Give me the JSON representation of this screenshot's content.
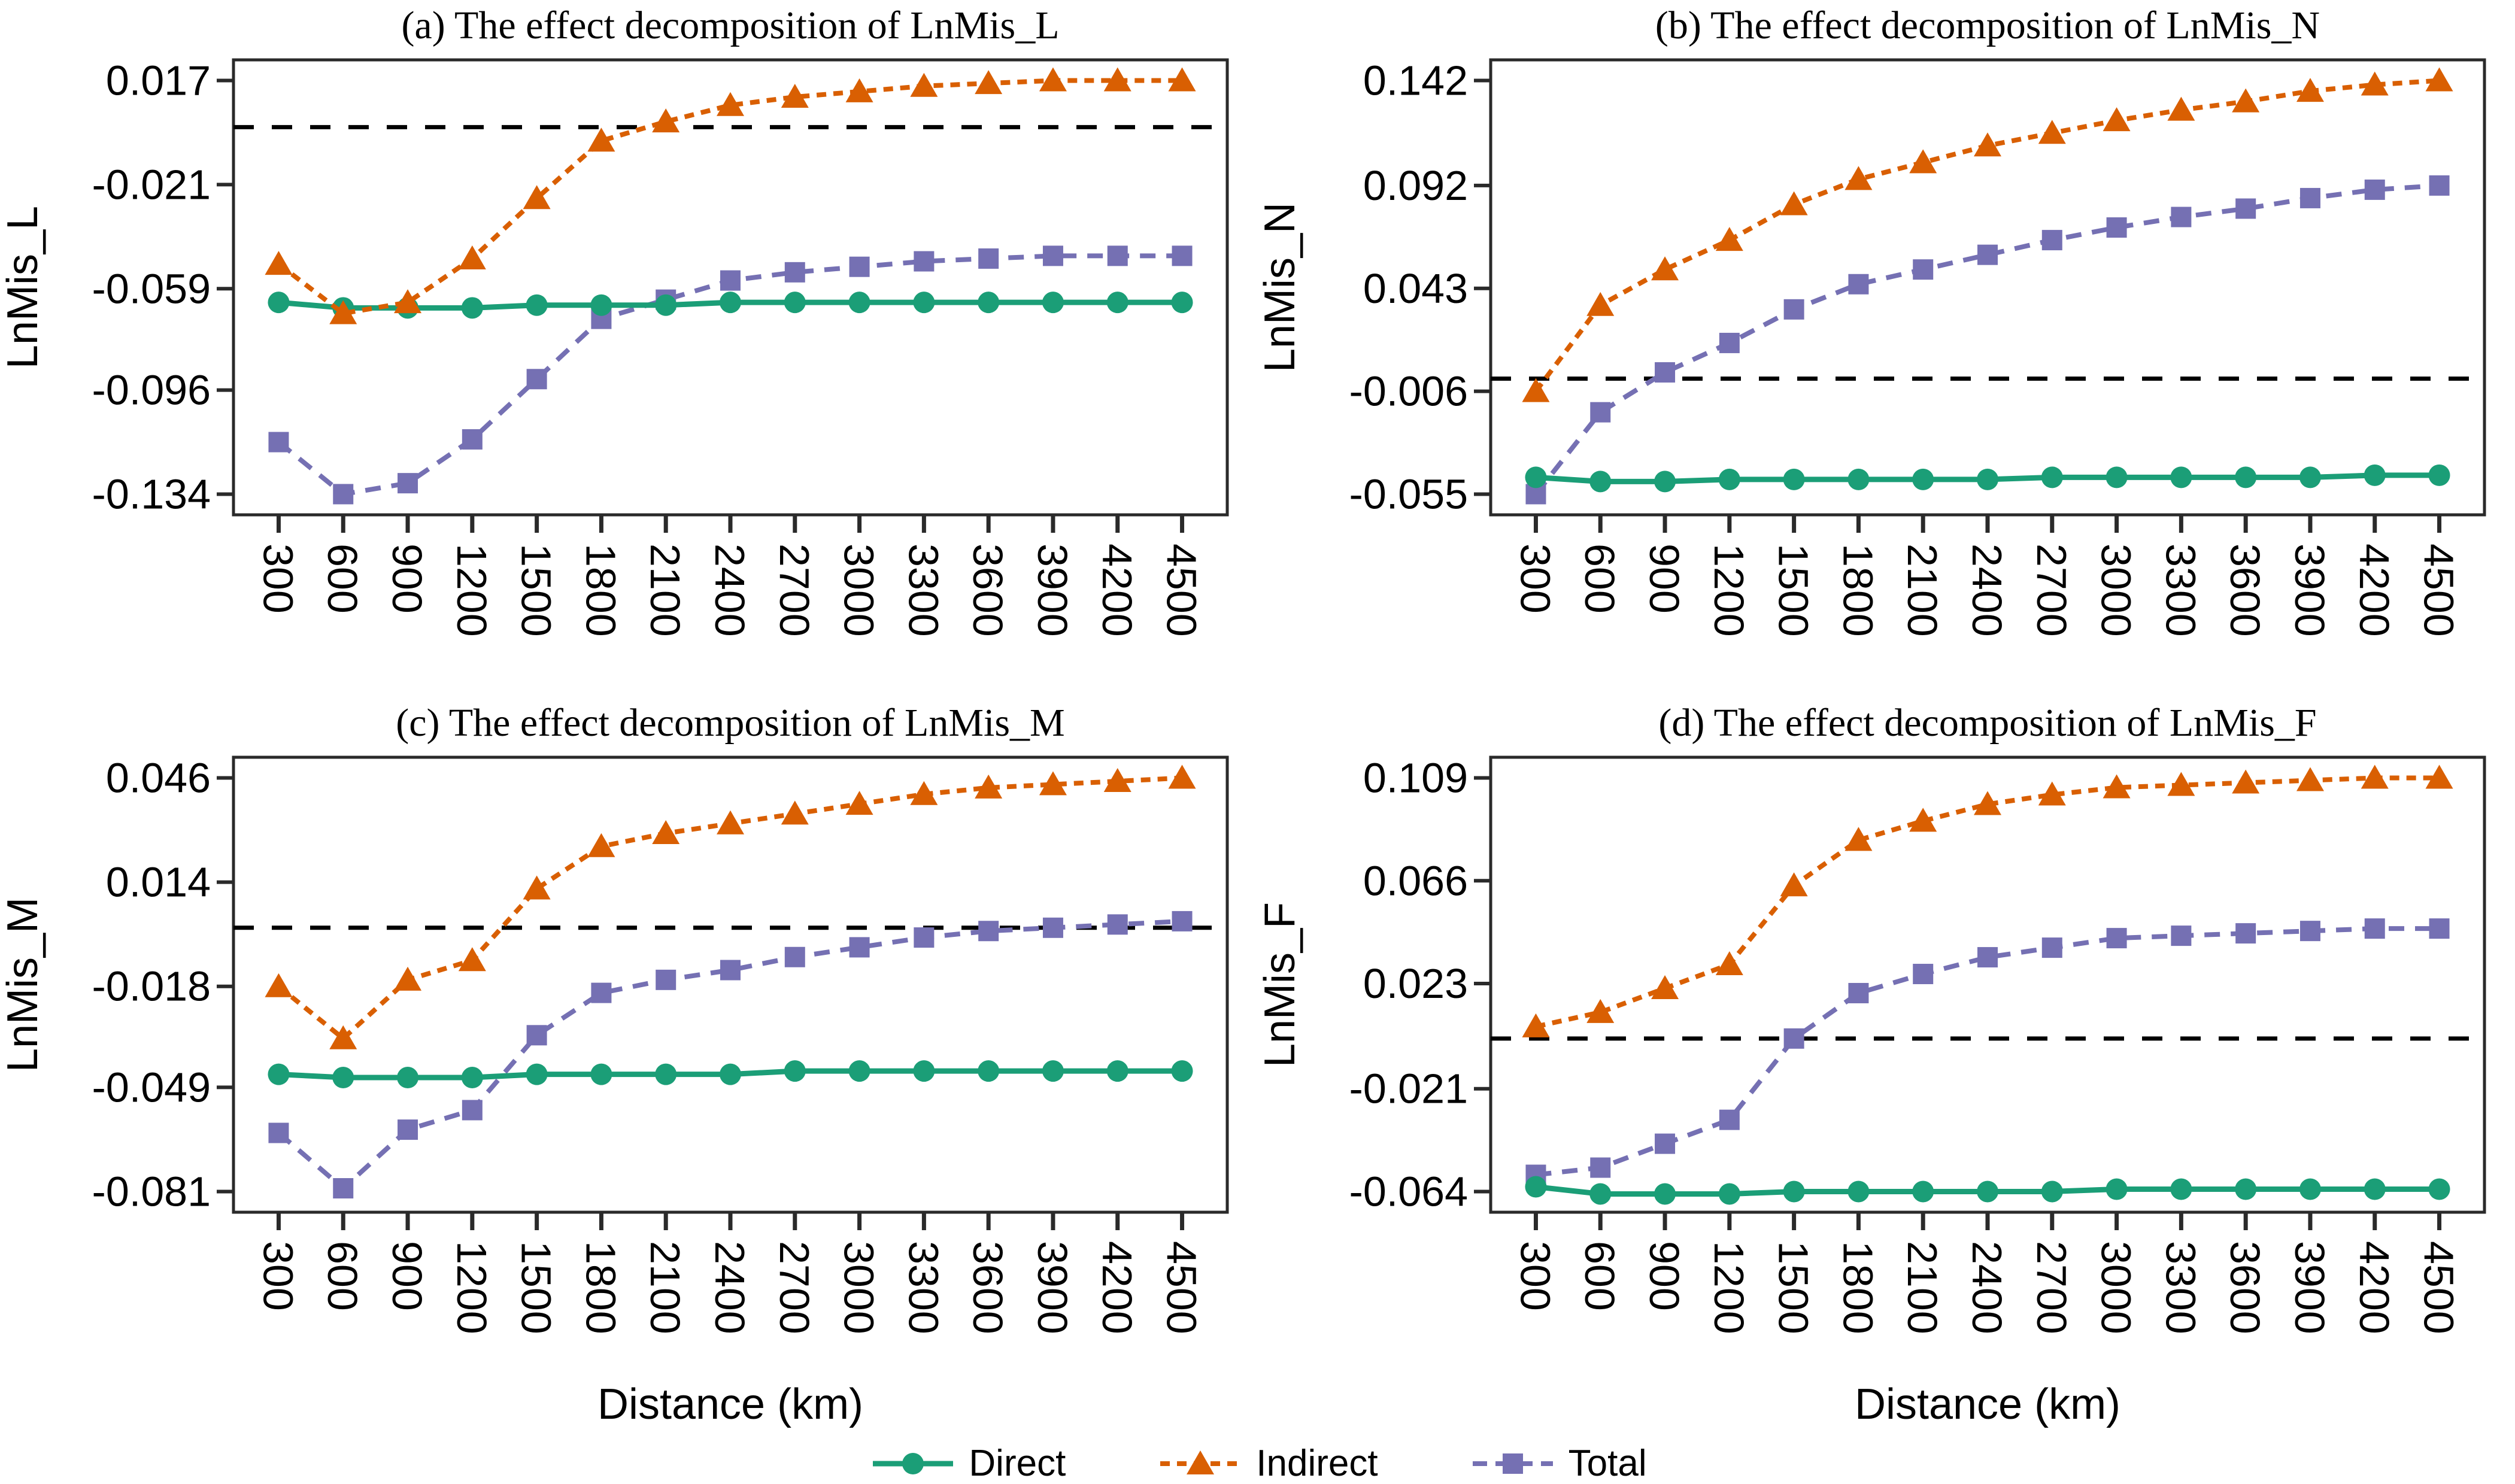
{
  "figure": {
    "background": "#ffffff",
    "axis_color": "#2a2a2a",
    "zero_line_color": "#000000"
  },
  "x_axis": {
    "label": "Distance (km)",
    "ticks": [
      300,
      600,
      900,
      1200,
      1500,
      1800,
      2100,
      2400,
      2700,
      3000,
      3300,
      3600,
      3900,
      4200,
      4500
    ]
  },
  "legend": {
    "items": [
      {
        "label": "Direct",
        "color": "#1b9e77",
        "marker": "circle",
        "line": "solid"
      },
      {
        "label": "Indirect",
        "color": "#d95f02",
        "marker": "triangle",
        "line": "dashed"
      },
      {
        "label": "Total",
        "color": "#7570b3",
        "marker": "square",
        "line": "longdash"
      }
    ]
  },
  "chart_data": [
    {
      "type": "line",
      "panel": "a",
      "title": "(a) The effect decomposition of LnMis_L",
      "ylabel": "LnMis_L",
      "xlabel": "",
      "yticks": [
        "0.017",
        "-0.021",
        "-0.059",
        "-0.096",
        "-0.134"
      ],
      "zero_line": 0,
      "x": [
        300,
        600,
        900,
        1200,
        1500,
        1800,
        2100,
        2400,
        2700,
        3000,
        3300,
        3600,
        3900,
        4200,
        4500
      ],
      "series": [
        {
          "name": "Direct",
          "color": "#1b9e77",
          "marker": "circle",
          "line": "solid",
          "values": [
            -0.064,
            -0.066,
            -0.066,
            -0.066,
            -0.065,
            -0.065,
            -0.065,
            -0.064,
            -0.064,
            -0.064,
            -0.064,
            -0.064,
            -0.064,
            -0.064,
            -0.064
          ]
        },
        {
          "name": "Indirect",
          "color": "#d95f02",
          "marker": "triangle",
          "line": "dashed",
          "values": [
            -0.05,
            -0.068,
            -0.064,
            -0.048,
            -0.026,
            -0.005,
            0.002,
            0.008,
            0.011,
            0.013,
            0.015,
            0.016,
            0.017,
            0.017,
            0.017
          ]
        },
        {
          "name": "Total",
          "color": "#7570b3",
          "marker": "square",
          "line": "longdash",
          "values": [
            -0.115,
            -0.134,
            -0.13,
            -0.114,
            -0.092,
            -0.07,
            -0.063,
            -0.056,
            -0.053,
            -0.051,
            -0.049,
            -0.048,
            -0.047,
            -0.047,
            -0.047
          ]
        }
      ]
    },
    {
      "type": "line",
      "panel": "b",
      "title": "(b) The effect decomposition of LnMis_N",
      "ylabel": "LnMis_N",
      "xlabel": "",
      "yticks": [
        "0.142",
        "0.092",
        "0.043",
        "-0.006",
        "-0.055"
      ],
      "zero_line": 0,
      "x": [
        300,
        600,
        900,
        1200,
        1500,
        1800,
        2100,
        2400,
        2700,
        3000,
        3300,
        3600,
        3900,
        4200,
        4500
      ],
      "series": [
        {
          "name": "Direct",
          "color": "#1b9e77",
          "marker": "circle",
          "line": "solid",
          "values": [
            -0.047,
            -0.049,
            -0.049,
            -0.048,
            -0.048,
            -0.048,
            -0.048,
            -0.048,
            -0.047,
            -0.047,
            -0.047,
            -0.047,
            -0.047,
            -0.046,
            -0.046
          ]
        },
        {
          "name": "Indirect",
          "color": "#d95f02",
          "marker": "triangle",
          "line": "dashed",
          "values": [
            -0.006,
            0.035,
            0.052,
            0.066,
            0.083,
            0.095,
            0.103,
            0.111,
            0.117,
            0.123,
            0.128,
            0.132,
            0.137,
            0.14,
            0.142
          ]
        },
        {
          "name": "Total",
          "color": "#7570b3",
          "marker": "square",
          "line": "longdash",
          "values": [
            -0.055,
            -0.016,
            0.003,
            0.017,
            0.033,
            0.045,
            0.052,
            0.059,
            0.066,
            0.072,
            0.077,
            0.081,
            0.086,
            0.09,
            0.092
          ]
        }
      ]
    },
    {
      "type": "line",
      "panel": "c",
      "title": "(c) The effect decomposition of LnMis_M",
      "ylabel": "LnMis_M",
      "xlabel": "Distance (km)",
      "yticks": [
        "0.046",
        "0.014",
        "-0.018",
        "-0.049",
        "-0.081"
      ],
      "zero_line": 0,
      "x": [
        300,
        600,
        900,
        1200,
        1500,
        1800,
        2100,
        2400,
        2700,
        3000,
        3300,
        3600,
        3900,
        4200,
        4500
      ],
      "series": [
        {
          "name": "Direct",
          "color": "#1b9e77",
          "marker": "circle",
          "line": "solid",
          "values": [
            -0.045,
            -0.046,
            -0.046,
            -0.046,
            -0.045,
            -0.045,
            -0.045,
            -0.045,
            -0.044,
            -0.044,
            -0.044,
            -0.044,
            -0.044,
            -0.044,
            -0.044
          ]
        },
        {
          "name": "Indirect",
          "color": "#d95f02",
          "marker": "triangle",
          "line": "dashed",
          "values": [
            -0.018,
            -0.034,
            -0.016,
            -0.01,
            0.012,
            0.025,
            0.029,
            0.032,
            0.035,
            0.038,
            0.041,
            0.043,
            0.044,
            0.045,
            0.046
          ]
        },
        {
          "name": "Total",
          "color": "#7570b3",
          "marker": "square",
          "line": "longdash",
          "values": [
            -0.063,
            -0.08,
            -0.062,
            -0.056,
            -0.033,
            -0.02,
            -0.016,
            -0.013,
            -0.009,
            -0.006,
            -0.003,
            -0.001,
            0.0,
            0.001,
            0.002
          ]
        }
      ]
    },
    {
      "type": "line",
      "panel": "d",
      "title": "(d) The effect decomposition of LnMis_F",
      "ylabel": "LnMis_F",
      "xlabel": "Distance (km)",
      "yticks": [
        "0.109",
        "0.066",
        "0.023",
        "-0.021",
        "-0.064"
      ],
      "zero_line": 0,
      "x": [
        300,
        600,
        900,
        1200,
        1500,
        1800,
        2100,
        2400,
        2700,
        3000,
        3300,
        3600,
        3900,
        4200,
        4500
      ],
      "series": [
        {
          "name": "Direct",
          "color": "#1b9e77",
          "marker": "circle",
          "line": "solid",
          "values": [
            -0.062,
            -0.065,
            -0.065,
            -0.065,
            -0.064,
            -0.064,
            -0.064,
            -0.064,
            -0.064,
            -0.063,
            -0.063,
            -0.063,
            -0.063,
            -0.063,
            -0.063
          ]
        },
        {
          "name": "Indirect",
          "color": "#d95f02",
          "marker": "triangle",
          "line": "dashed",
          "values": [
            0.005,
            0.011,
            0.021,
            0.031,
            0.064,
            0.083,
            0.091,
            0.098,
            0.102,
            0.105,
            0.106,
            0.107,
            0.108,
            0.109,
            0.109
          ]
        },
        {
          "name": "Total",
          "color": "#7570b3",
          "marker": "square",
          "line": "longdash",
          "values": [
            -0.057,
            -0.054,
            -0.044,
            -0.034,
            0.0,
            0.019,
            0.027,
            0.034,
            0.038,
            0.042,
            0.043,
            0.044,
            0.045,
            0.046,
            0.046
          ]
        }
      ]
    }
  ]
}
